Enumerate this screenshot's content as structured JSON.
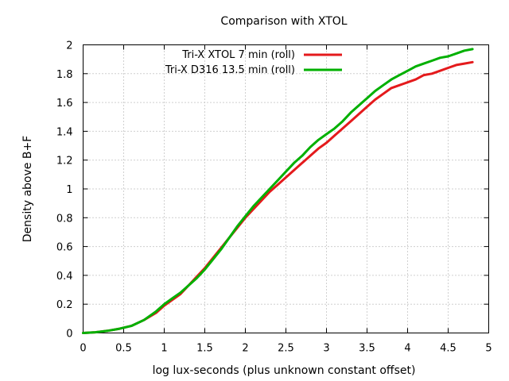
{
  "chart_data": {
    "type": "line",
    "title": "Comparison with XTOL",
    "xlabel": "log lux-seconds (plus unknown constant offset)",
    "ylabel": "Density above B+F",
    "xlim": [
      0,
      5
    ],
    "ylim": [
      0,
      2
    ],
    "xticks": [
      "0",
      "0.5",
      "1",
      "1.5",
      "2",
      "2.5",
      "3",
      "3.5",
      "4",
      "4.5",
      "5"
    ],
    "yticks": [
      "0",
      "0.2",
      "0.4",
      "0.6",
      "0.8",
      "1",
      "1.2",
      "1.4",
      "1.6",
      "1.8",
      "2"
    ],
    "grid": true,
    "legend_position": "top-right",
    "series": [
      {
        "name": "Tri-X XTOL 7 min (roll)",
        "color": "#e41a1c",
        "x": [
          0,
          0.15,
          0.3,
          0.45,
          0.6,
          0.75,
          0.9,
          1.0,
          1.1,
          1.2,
          1.3,
          1.4,
          1.5,
          1.6,
          1.7,
          1.8,
          1.9,
          2.0,
          2.1,
          2.2,
          2.3,
          2.4,
          2.5,
          2.6,
          2.7,
          2.8,
          2.9,
          3.0,
          3.1,
          3.2,
          3.3,
          3.4,
          3.5,
          3.6,
          3.7,
          3.8,
          3.9,
          4.0,
          4.1,
          4.2,
          4.3,
          4.4,
          4.5,
          4.6,
          4.7,
          4.8
        ],
        "y": [
          0,
          0.005,
          0.015,
          0.03,
          0.05,
          0.09,
          0.14,
          0.19,
          0.23,
          0.27,
          0.33,
          0.39,
          0.45,
          0.52,
          0.59,
          0.66,
          0.73,
          0.8,
          0.86,
          0.92,
          0.98,
          1.03,
          1.08,
          1.13,
          1.18,
          1.23,
          1.28,
          1.32,
          1.37,
          1.42,
          1.47,
          1.52,
          1.57,
          1.62,
          1.66,
          1.7,
          1.72,
          1.74,
          1.76,
          1.79,
          1.8,
          1.82,
          1.84,
          1.86,
          1.87,
          1.88
        ]
      },
      {
        "name": "Tri-X D316 13.5 min (roll)",
        "color": "#00b000",
        "x": [
          0,
          0.15,
          0.3,
          0.45,
          0.6,
          0.75,
          0.9,
          1.0,
          1.1,
          1.2,
          1.3,
          1.4,
          1.5,
          1.6,
          1.7,
          1.8,
          1.9,
          2.0,
          2.1,
          2.2,
          2.3,
          2.4,
          2.5,
          2.6,
          2.7,
          2.8,
          2.9,
          3.0,
          3.1,
          3.2,
          3.3,
          3.4,
          3.5,
          3.6,
          3.7,
          3.8,
          3.9,
          4.0,
          4.1,
          4.2,
          4.3,
          4.4,
          4.5,
          4.6,
          4.7,
          4.8
        ],
        "y": [
          0,
          0.005,
          0.015,
          0.03,
          0.05,
          0.09,
          0.15,
          0.2,
          0.24,
          0.28,
          0.33,
          0.38,
          0.44,
          0.51,
          0.58,
          0.66,
          0.74,
          0.81,
          0.88,
          0.94,
          1.0,
          1.06,
          1.12,
          1.18,
          1.23,
          1.29,
          1.34,
          1.38,
          1.42,
          1.47,
          1.53,
          1.58,
          1.63,
          1.68,
          1.72,
          1.76,
          1.79,
          1.82,
          1.85,
          1.87,
          1.89,
          1.91,
          1.92,
          1.94,
          1.96,
          1.97
        ]
      }
    ]
  }
}
